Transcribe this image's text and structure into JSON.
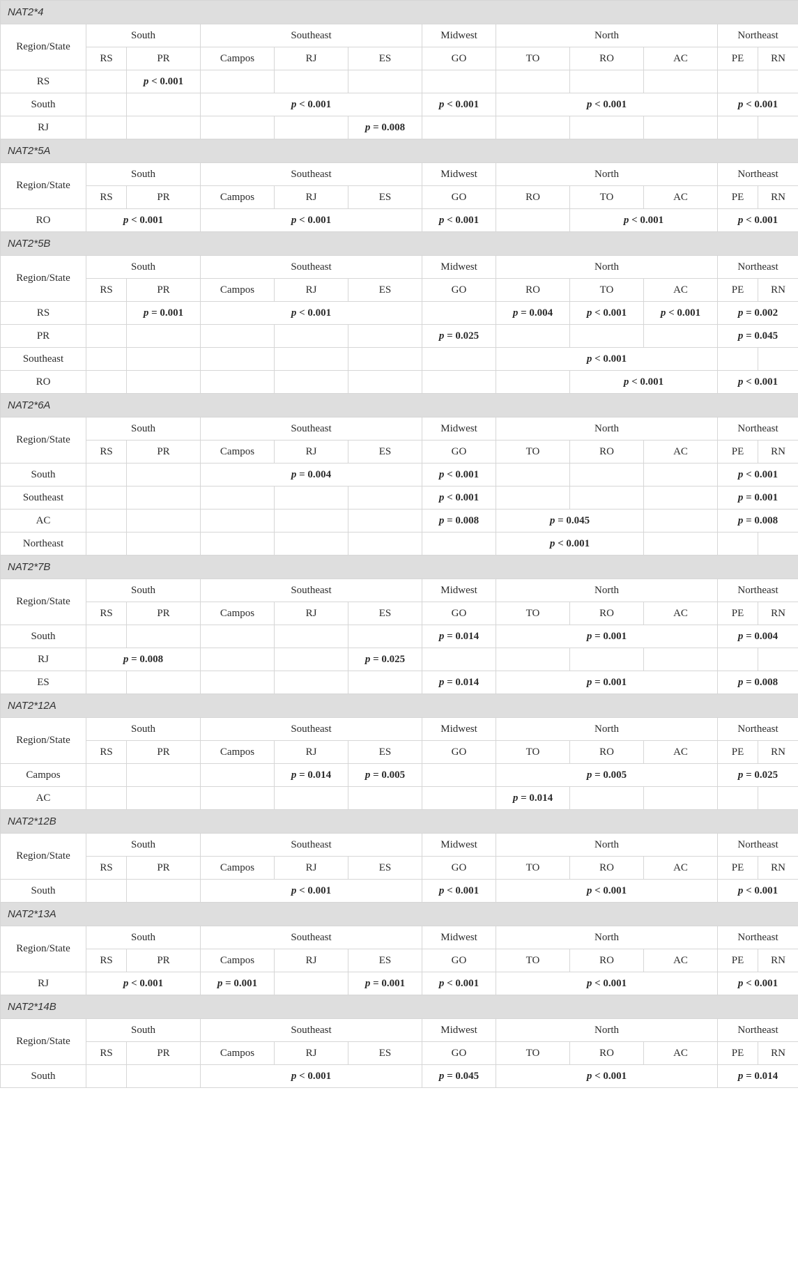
{
  "header": {
    "row_label": "Region/State",
    "regions": [
      {
        "name": "South",
        "span": 2
      },
      {
        "name": "Southeast",
        "span": 3
      },
      {
        "name": "Midwest",
        "span": 1
      },
      {
        "name": "North",
        "span": 3
      },
      {
        "name": "Northeast",
        "span": 2
      }
    ]
  },
  "sections": [
    {
      "title": "NAT2*4",
      "states": [
        "RS",
        "PR",
        "Campos",
        "RJ",
        "ES",
        "GO",
        "TO",
        "RO",
        "AC",
        "PE",
        "RN"
      ],
      "rows": [
        {
          "label": "RS",
          "cells": [
            {
              "text": ""
            },
            {
              "text": "p < 0.001"
            },
            {
              "text": ""
            },
            {
              "text": ""
            },
            {
              "text": ""
            },
            {
              "text": ""
            },
            {
              "text": ""
            },
            {
              "text": ""
            },
            {
              "text": ""
            },
            {
              "text": ""
            },
            {
              "text": ""
            }
          ]
        },
        {
          "label": "South",
          "cells": [
            {
              "text": ""
            },
            {
              "text": ""
            },
            {
              "text": "p < 0.001",
              "span": 3
            },
            {
              "text": "p < 0.001"
            },
            {
              "text": "p < 0.001",
              "span": 3
            },
            {
              "text": "p < 0.001",
              "span": 2
            }
          ]
        },
        {
          "label": "RJ",
          "cells": [
            {
              "text": ""
            },
            {
              "text": ""
            },
            {
              "text": ""
            },
            {
              "text": ""
            },
            {
              "text": "p = 0.008"
            },
            {
              "text": ""
            },
            {
              "text": ""
            },
            {
              "text": ""
            },
            {
              "text": ""
            },
            {
              "text": ""
            },
            {
              "text": ""
            }
          ]
        }
      ]
    },
    {
      "title": "NAT2*5A",
      "states": [
        "RS",
        "PR",
        "Campos",
        "RJ",
        "ES",
        "GO",
        "RO",
        "TO",
        "AC",
        "PE",
        "RN"
      ],
      "rows": [
        {
          "label": "RO",
          "cells": [
            {
              "text": "p < 0.001",
              "span": 2
            },
            {
              "text": "p < 0.001",
              "span": 3
            },
            {
              "text": "p < 0.001"
            },
            {
              "text": ""
            },
            {
              "text": "p < 0.001",
              "span": 2
            },
            {
              "text": "p < 0.001",
              "span": 2
            }
          ]
        }
      ]
    },
    {
      "title": "NAT2*5B",
      "states": [
        "RS",
        "PR",
        "Campos",
        "RJ",
        "ES",
        "GO",
        "RO",
        "TO",
        "AC",
        "PE",
        "RN"
      ],
      "rows": [
        {
          "label": "RS",
          "cells": [
            {
              "text": ""
            },
            {
              "text": "p = 0.001"
            },
            {
              "text": "p < 0.001",
              "span": 3
            },
            {
              "text": ""
            },
            {
              "text": "p = 0.004"
            },
            {
              "text": "p < 0.001"
            },
            {
              "text": "p < 0.001"
            },
            {
              "text": "p = 0.002",
              "span": 2
            }
          ]
        },
        {
          "label": "PR",
          "cells": [
            {
              "text": ""
            },
            {
              "text": ""
            },
            {
              "text": ""
            },
            {
              "text": ""
            },
            {
              "text": ""
            },
            {
              "text": "p = 0.025"
            },
            {
              "text": ""
            },
            {
              "text": ""
            },
            {
              "text": ""
            },
            {
              "text": "p = 0.045",
              "span": 2
            }
          ]
        },
        {
          "label": "Southeast",
          "cells": [
            {
              "text": ""
            },
            {
              "text": ""
            },
            {
              "text": ""
            },
            {
              "text": ""
            },
            {
              "text": ""
            },
            {
              "text": ""
            },
            {
              "text": "p < 0.001",
              "span": 3
            },
            {
              "text": ""
            },
            {
              "text": ""
            }
          ]
        },
        {
          "label": "RO",
          "cells": [
            {
              "text": ""
            },
            {
              "text": ""
            },
            {
              "text": ""
            },
            {
              "text": ""
            },
            {
              "text": ""
            },
            {
              "text": ""
            },
            {
              "text": ""
            },
            {
              "text": "p < 0.001",
              "span": 2
            },
            {
              "text": "p < 0.001",
              "span": 2
            }
          ]
        }
      ]
    },
    {
      "title": "NAT2*6A",
      "states": [
        "RS",
        "PR",
        "Campos",
        "RJ",
        "ES",
        "GO",
        "TO",
        "RO",
        "AC",
        "PE",
        "RN"
      ],
      "rows": [
        {
          "label": "South",
          "cells": [
            {
              "text": ""
            },
            {
              "text": ""
            },
            {
              "text": "p = 0.004",
              "span": 3
            },
            {
              "text": "p < 0.001"
            },
            {
              "text": ""
            },
            {
              "text": ""
            },
            {
              "text": ""
            },
            {
              "text": "p < 0.001",
              "span": 2
            }
          ]
        },
        {
          "label": "Southeast",
          "cells": [
            {
              "text": ""
            },
            {
              "text": ""
            },
            {
              "text": ""
            },
            {
              "text": ""
            },
            {
              "text": ""
            },
            {
              "text": "p < 0.001"
            },
            {
              "text": ""
            },
            {
              "text": ""
            },
            {
              "text": ""
            },
            {
              "text": "p = 0.001",
              "span": 2
            }
          ]
        },
        {
          "label": "AC",
          "cells": [
            {
              "text": ""
            },
            {
              "text": ""
            },
            {
              "text": ""
            },
            {
              "text": ""
            },
            {
              "text": ""
            },
            {
              "text": "p = 0.008"
            },
            {
              "text": "p = 0.045",
              "span": 2
            },
            {
              "text": ""
            },
            {
              "text": "p = 0.008",
              "span": 2
            }
          ]
        },
        {
          "label": "Northeast",
          "cells": [
            {
              "text": ""
            },
            {
              "text": ""
            },
            {
              "text": ""
            },
            {
              "text": ""
            },
            {
              "text": ""
            },
            {
              "text": ""
            },
            {
              "text": "p < 0.001",
              "span": 2
            },
            {
              "text": ""
            },
            {
              "text": ""
            },
            {
              "text": ""
            }
          ]
        }
      ]
    },
    {
      "title": "NAT2*7B",
      "states": [
        "RS",
        "PR",
        "Campos",
        "RJ",
        "ES",
        "GO",
        "TO",
        "RO",
        "AC",
        "PE",
        "RN"
      ],
      "rows": [
        {
          "label": "South",
          "cells": [
            {
              "text": ""
            },
            {
              "text": ""
            },
            {
              "text": ""
            },
            {
              "text": ""
            },
            {
              "text": ""
            },
            {
              "text": "p = 0.014"
            },
            {
              "text": "p = 0.001",
              "span": 3
            },
            {
              "text": "p = 0.004",
              "span": 2
            }
          ]
        },
        {
          "label": "RJ",
          "cells": [
            {
              "text": "p = 0.008",
              "span": 2
            },
            {
              "text": ""
            },
            {
              "text": ""
            },
            {
              "text": "p = 0.025"
            },
            {
              "text": ""
            },
            {
              "text": ""
            },
            {
              "text": ""
            },
            {
              "text": ""
            },
            {
              "text": ""
            },
            {
              "text": ""
            }
          ]
        },
        {
          "label": "ES",
          "cells": [
            {
              "text": ""
            },
            {
              "text": ""
            },
            {
              "text": ""
            },
            {
              "text": ""
            },
            {
              "text": ""
            },
            {
              "text": "p = 0.014"
            },
            {
              "text": "p = 0.001",
              "span": 3
            },
            {
              "text": "p = 0.008",
              "span": 2
            }
          ]
        }
      ]
    },
    {
      "title": "NAT2*12A",
      "states": [
        "RS",
        "PR",
        "Campos",
        "RJ",
        "ES",
        "GO",
        "TO",
        "RO",
        "AC",
        "PE",
        "RN"
      ],
      "rows": [
        {
          "label": "Campos",
          "cells": [
            {
              "text": ""
            },
            {
              "text": ""
            },
            {
              "text": ""
            },
            {
              "text": "p = 0.014"
            },
            {
              "text": "p = 0.005"
            },
            {
              "text": ""
            },
            {
              "text": "p = 0.005",
              "span": 3
            },
            {
              "text": "p = 0.025",
              "span": 2
            }
          ]
        },
        {
          "label": "AC",
          "cells": [
            {
              "text": ""
            },
            {
              "text": ""
            },
            {
              "text": ""
            },
            {
              "text": ""
            },
            {
              "text": ""
            },
            {
              "text": ""
            },
            {
              "text": "p = 0.014"
            },
            {
              "text": ""
            },
            {
              "text": ""
            },
            {
              "text": ""
            },
            {
              "text": ""
            }
          ]
        }
      ]
    },
    {
      "title": "NAT2*12B",
      "states": [
        "RS",
        "PR",
        "Campos",
        "RJ",
        "ES",
        "GO",
        "TO",
        "RO",
        "AC",
        "PE",
        "RN"
      ],
      "rows": [
        {
          "label": "South",
          "cells": [
            {
              "text": ""
            },
            {
              "text": ""
            },
            {
              "text": "p < 0.001",
              "span": 3
            },
            {
              "text": "p < 0.001"
            },
            {
              "text": "p < 0.001",
              "span": 3
            },
            {
              "text": "p < 0.001",
              "span": 2
            }
          ]
        }
      ]
    },
    {
      "title": "NAT2*13A",
      "states": [
        "RS",
        "PR",
        "Campos",
        "RJ",
        "ES",
        "GO",
        "TO",
        "RO",
        "AC",
        "PE",
        "RN"
      ],
      "rows": [
        {
          "label": "RJ",
          "cells": [
            {
              "text": "p < 0.001",
              "span": 2
            },
            {
              "text": "p = 0.001"
            },
            {
              "text": ""
            },
            {
              "text": "p = 0.001"
            },
            {
              "text": "p < 0.001"
            },
            {
              "text": "p < 0.001",
              "span": 3
            },
            {
              "text": "p < 0.001",
              "span": 2
            }
          ]
        }
      ]
    },
    {
      "title": "NAT2*14B",
      "states": [
        "RS",
        "PR",
        "Campos",
        "RJ",
        "ES",
        "GO",
        "TO",
        "RO",
        "AC",
        "PE",
        "RN"
      ],
      "rows": [
        {
          "label": "South",
          "cells": [
            {
              "text": ""
            },
            {
              "text": ""
            },
            {
              "text": "p < 0.001",
              "span": 3
            },
            {
              "text": "p = 0.045"
            },
            {
              "text": "p < 0.001",
              "span": 3
            },
            {
              "text": "p = 0.014",
              "span": 2
            }
          ]
        }
      ]
    }
  ]
}
